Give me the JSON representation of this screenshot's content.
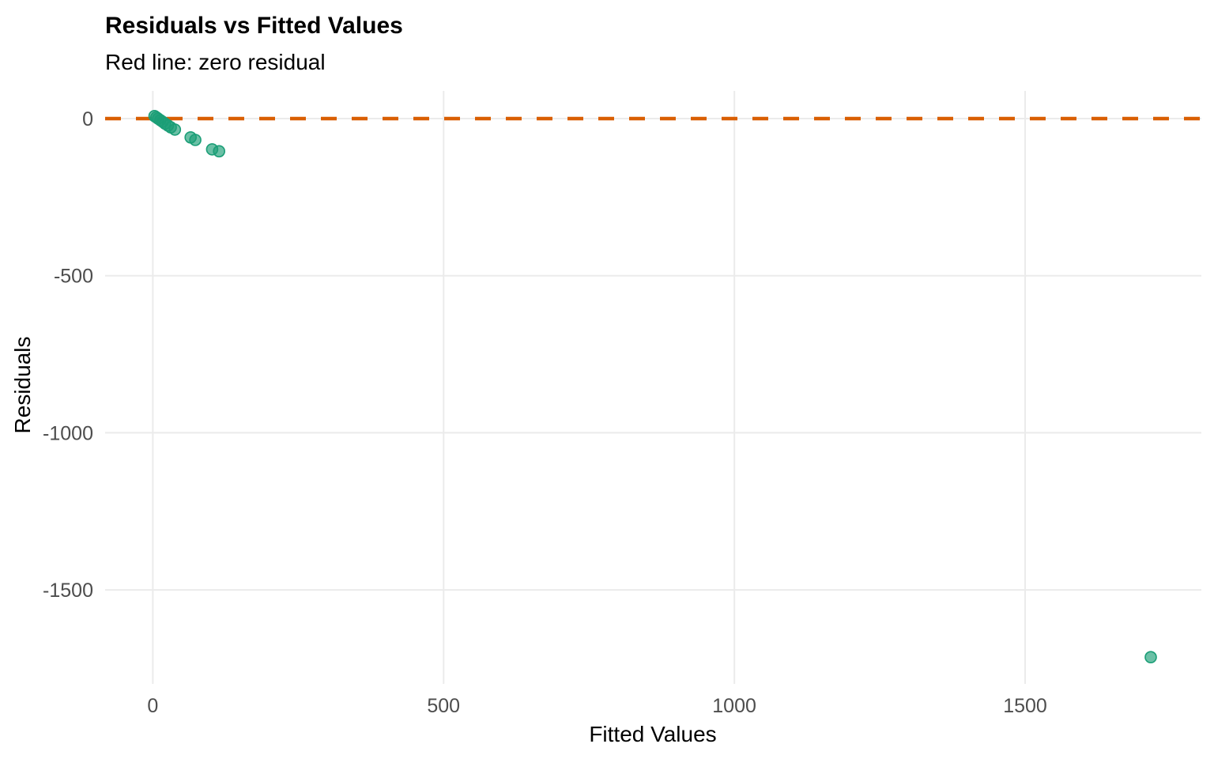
{
  "chart_data": {
    "type": "scatter",
    "title": "Residuals vs Fitted Values",
    "subtitle": "Red line: zero residual",
    "xlabel": "Fitted Values",
    "ylabel": "Residuals",
    "xlim": [
      -82,
      1803
    ],
    "ylim": [
      -1799,
      88
    ],
    "x_ticks": [
      0,
      500,
      1000,
      1500
    ],
    "x_tick_labels": [
      "0",
      "500",
      "1000",
      "1500"
    ],
    "y_ticks": [
      0,
      -500,
      -1000,
      -1500
    ],
    "y_tick_labels": [
      "0",
      "-500",
      "-1000",
      "-1500"
    ],
    "grid": "major-only",
    "legend_position": "none",
    "background_color": "#FFFFFF",
    "grid_color": "#EBEBEB",
    "tick_label_color": "#4D4D4D",
    "reference_line": {
      "y": 0,
      "style": "dashed",
      "color": "#D95F02",
      "label": "zero residual"
    },
    "series": [
      {
        "name": "residuals",
        "marker": "circle",
        "color": "#1B9E77",
        "opacity": 0.7,
        "points": [
          [
            3,
            8
          ],
          [
            6,
            4
          ],
          [
            9,
            0
          ],
          [
            13,
            -5
          ],
          [
            17,
            -10
          ],
          [
            21,
            -16
          ],
          [
            26,
            -22
          ],
          [
            31,
            -28
          ],
          [
            38,
            -35
          ],
          [
            65,
            -60
          ],
          [
            73,
            -68
          ],
          [
            102,
            -98
          ],
          [
            114,
            -104
          ],
          [
            1716,
            -1714
          ]
        ]
      }
    ]
  }
}
